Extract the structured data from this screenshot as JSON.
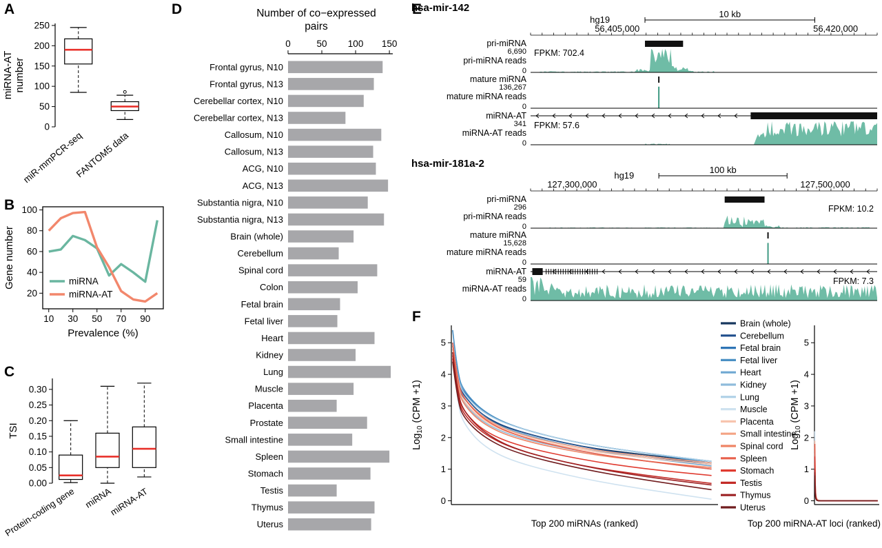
{
  "panels": {
    "A": {
      "label": "A"
    },
    "B": {
      "label": "B"
    },
    "C": {
      "label": "C"
    },
    "D": {
      "label": "D"
    },
    "E": {
      "label": "E"
    },
    "F": {
      "label": "F"
    }
  },
  "colors": {
    "teal": "#6fbca6",
    "teal_dark": "#3f9a82",
    "salmon": "#f2876c",
    "median_red": "#e8302a",
    "bar_gray": "#a7a7aa",
    "black": "#111111"
  },
  "tissue_legend": [
    {
      "label": "Brain (whole)",
      "color": "#17375e"
    },
    {
      "label": "Cerebellum",
      "color": "#1f4e8c"
    },
    {
      "label": "Fetal brain",
      "color": "#2e75b6"
    },
    {
      "label": "Fetal liver",
      "color": "#4a90c4"
    },
    {
      "label": "Heart",
      "color": "#6fa8d2"
    },
    {
      "label": "Kidney",
      "color": "#8fbcdb"
    },
    {
      "label": "Lung",
      "color": "#aed0e6"
    },
    {
      "label": "Muscle",
      "color": "#cfe2f0"
    },
    {
      "label": "Placenta",
      "color": "#f8c4ae"
    },
    {
      "label": "Small intestine",
      "color": "#f4a384"
    },
    {
      "label": "Spinal cord",
      "color": "#ef8465"
    },
    {
      "label": "Spleen",
      "color": "#e8604c"
    },
    {
      "label": "Stomach",
      "color": "#e03b30"
    },
    {
      "label": "Testis",
      "color": "#c32b27"
    },
    {
      "label": "Thymus",
      "color": "#9c2123"
    },
    {
      "label": "Uterus",
      "color": "#701c1e"
    }
  ],
  "chart_data": [
    {
      "id": "A",
      "type": "boxplot",
      "ylabel": [
        "miRNA-AT",
        "number"
      ],
      "ylim": [
        0,
        255
      ],
      "yticks": [
        0,
        50,
        100,
        150,
        200,
        250
      ],
      "ytick_labels": [
        "0",
        "50",
        "100",
        "150",
        "200",
        "250"
      ],
      "categories": [
        "miR-mmPCR-seq",
        "FANTOM5 data"
      ],
      "boxes": [
        {
          "low": 85,
          "q1": 155,
          "median": 190,
          "q3": 217,
          "high": 245
        },
        {
          "low": 18,
          "q1": 40,
          "median": 50,
          "q3": 62,
          "high": 78,
          "outliers": [
            86
          ]
        }
      ],
      "label_rotate": -40
    },
    {
      "id": "B",
      "type": "line",
      "xlabel": "Prevalence (%)",
      "ylabel": "Gene number",
      "xlim": [
        5,
        105
      ],
      "xticks": [
        10,
        30,
        50,
        70,
        90
      ],
      "ylim": [
        5,
        103
      ],
      "yticks": [
        20,
        40,
        60,
        80,
        100
      ],
      "x": [
        10,
        20,
        30,
        40,
        50,
        60,
        70,
        80,
        90,
        100
      ],
      "series": [
        {
          "name": "miRNA",
          "color": "#6ab6a0",
          "values": [
            60,
            62,
            75,
            71,
            63,
            37,
            48,
            40,
            31,
            90
          ]
        },
        {
          "name": "miRNA-AT",
          "color": "#f2876c",
          "values": [
            80,
            92,
            97,
            98,
            64,
            45,
            22,
            14,
            12,
            20
          ]
        }
      ]
    },
    {
      "id": "C",
      "type": "boxplot",
      "ylabel": "TSI",
      "ylim": [
        0,
        0.335
      ],
      "yticks": [
        0,
        0.05,
        0.1,
        0.15,
        0.2,
        0.25,
        0.3
      ],
      "ytick_labels": [
        "0.00",
        "0.05",
        "0.10",
        "0.15",
        "0.20",
        "0.25",
        "0.30"
      ],
      "categories": [
        "Protein-coding gene",
        "miRNA",
        "miRNA-AT"
      ],
      "boxes": [
        {
          "low": 0.002,
          "q1": 0.012,
          "median": 0.025,
          "q3": 0.09,
          "high": 0.2
        },
        {
          "low": 0.0,
          "q1": 0.05,
          "median": 0.085,
          "q3": 0.16,
          "high": 0.31
        },
        {
          "low": 0.02,
          "q1": 0.05,
          "median": 0.11,
          "q3": 0.18,
          "high": 0.32
        }
      ],
      "label_rotate": -33
    },
    {
      "id": "D",
      "type": "bar",
      "orientation": "horizontal",
      "title_lines": [
        "Number of co−expressed",
        "pairs"
      ],
      "xlim": [
        0,
        155
      ],
      "xticks": [
        0,
        50,
        100,
        150
      ],
      "categories": [
        "Frontal gyrus, N10",
        "Frontal gyrus, N13",
        "Cerebellar cortex, N10",
        "Cerebellar cortex, N13",
        "Callosum, N10",
        "Callosum, N13",
        "ACG, N10",
        "ACG, N13",
        "Substantia nigra, N10",
        "Substantia nigra, N13",
        "Brain (whole)",
        "Cerebellum",
        "Spinal cord",
        "Colon",
        "Fetal brain",
        "Fetal liver",
        "Heart",
        "Kidney",
        "Lung",
        "Muscle",
        "Placenta",
        "Prostate",
        "Small intestine",
        "Spleen",
        "Stomach",
        "Testis",
        "Thymus",
        "Uterus"
      ],
      "values": [
        140,
        127,
        112,
        85,
        138,
        126,
        130,
        148,
        118,
        142,
        97,
        75,
        132,
        103,
        77,
        73,
        128,
        100,
        152,
        97,
        72,
        117,
        95,
        150,
        122,
        72,
        128,
        123
      ]
    },
    {
      "id": "E",
      "type": "genome",
      "loci": [
        {
          "name": "hsa-mir-142",
          "genome": "hg19",
          "genome_pos": 0.2,
          "scale_label": "10 kb",
          "scale_span": [
            0.33,
            0.82
          ],
          "coords": [
            {
              "text": "56,405,000",
              "pos": 0.25
            },
            {
              "text": "56,420,000",
              "pos": 0.88
            }
          ],
          "tracks": [
            {
              "kind": "feature",
              "label": "pri-miRNA",
              "box": [
                0.33,
                0.44
              ]
            },
            {
              "kind": "reads",
              "label": "pri-miRNA reads",
              "ymax": "6,690",
              "ymin": "0",
              "fpkm": "FPKM: 702.4",
              "fpkm_side": "left",
              "seed": 7,
              "profile": [
                [
                  0.02,
                  0.3,
                  0.015,
                  0.02
                ],
                [
                  0.3,
                  0.345,
                  0.06,
                  0.07
                ],
                [
                  0.345,
                  0.41,
                  0.5,
                  0.5
                ],
                [
                  0.41,
                  0.46,
                  0.1,
                  0.12
                ],
                [
                  0.46,
                  0.53,
                  0.02,
                  0.03
                ]
              ]
            },
            {
              "kind": "tick",
              "label": "mature miRNA",
              "pos": 0.37
            },
            {
              "kind": "reads",
              "label": "mature miRNA reads",
              "ymax": "136,267",
              "ymin": "0",
              "seed": 8,
              "profile": [],
              "spikes": [
                [
                  0.37,
                  0.92
                ]
              ]
            },
            {
              "kind": "gene",
              "label": "miRNA-AT",
              "box": [
                0.635,
                1.0
              ],
              "dir": "left"
            },
            {
              "kind": "reads",
              "label": "miRNA-AT reads",
              "ymax": "341",
              "ymin": "0",
              "fpkm": "FPKM: 57.6",
              "fpkm_side": "left",
              "seed": 9,
              "profile": [
                [
                  0.33,
                  0.4,
                  0.02,
                  0.02
                ],
                [
                  0.645,
                  0.68,
                  0.25,
                  0.2
                ],
                [
                  0.68,
                  1.0,
                  0.55,
                  0.35
                ]
              ]
            }
          ]
        },
        {
          "name": "hsa-mir-181a-2",
          "genome": "hg19",
          "genome_pos": 0.27,
          "scale_label": "100 kb",
          "scale_span": [
            0.37,
            0.74
          ],
          "coords": [
            {
              "text": "127,300,000",
              "pos": 0.12
            },
            {
              "text": "127,500,000",
              "pos": 0.85
            }
          ],
          "tracks": [
            {
              "kind": "feature",
              "label": "pri-miRNA",
              "box": [
                0.56,
                0.675
              ]
            },
            {
              "kind": "reads",
              "label": "pri-miRNA reads",
              "ymax": "296",
              "ymin": "0",
              "fpkm": "FPKM: 10.2",
              "fpkm_side": "right",
              "seed": 10,
              "profile": [
                [
                  0.05,
                  0.55,
                  0.01,
                  0.015
                ],
                [
                  0.56,
                  0.675,
                  0.18,
                  0.25
                ],
                [
                  0.675,
                  0.72,
                  0.05,
                  0.05
                ],
                [
                  0.72,
                  0.99,
                  0.012,
                  0.02
                ]
              ]
            },
            {
              "kind": "tick",
              "label": "mature miRNA",
              "pos": 0.685
            },
            {
              "kind": "reads",
              "label": "mature miRNA reads",
              "ymax": "15,628",
              "ymin": "0",
              "seed": 11,
              "profile": [],
              "spikes": [
                [
                  0.685,
                  0.9
                ]
              ]
            },
            {
              "kind": "gene",
              "label": "miRNA-AT",
              "box": [
                0.005,
                0.035
              ],
              "dir": "left",
              "hash": true
            },
            {
              "kind": "reads",
              "label": "miRNA-AT reads",
              "ymax": "59",
              "ymin": "0",
              "fpkm": "FPKM: 7.3",
              "fpkm_side": "right",
              "seed": 12,
              "profile": [
                [
                  0.0,
                  0.06,
                  0.5,
                  0.5
                ],
                [
                  0.06,
                  1.0,
                  0.26,
                  0.3
                ]
              ]
            }
          ]
        }
      ]
    },
    {
      "id": "F-left",
      "type": "line",
      "xlabel": "Top 200 miRNAs (ranked)",
      "ylabel": "Log10 (CPM +1)",
      "xmax": 205,
      "ylim": [
        -0.12,
        5.55
      ],
      "yticks": [
        0,
        1,
        2,
        3,
        4,
        5
      ],
      "x": [
        1,
        5,
        10,
        25,
        50,
        100,
        150,
        200
      ],
      "series": [
        {
          "name": "Brain (whole)",
          "values": [
            4.8,
            3.6,
            3.2,
            2.6,
            2.2,
            1.7,
            1.45,
            1.2
          ]
        },
        {
          "name": "Cerebellum",
          "values": [
            4.9,
            3.7,
            3.3,
            2.65,
            2.2,
            1.7,
            1.4,
            1.15
          ]
        },
        {
          "name": "Fetal brain",
          "values": [
            5.0,
            3.8,
            3.4,
            2.8,
            2.3,
            1.8,
            1.5,
            1.25
          ]
        },
        {
          "name": "Fetal liver",
          "values": [
            5.4,
            3.95,
            3.45,
            2.8,
            2.3,
            1.8,
            1.5,
            1.2
          ]
        },
        {
          "name": "Heart",
          "values": [
            4.9,
            3.65,
            3.2,
            2.6,
            2.15,
            1.65,
            1.35,
            1.1
          ]
        },
        {
          "name": "Kidney",
          "values": [
            4.7,
            3.5,
            3.05,
            2.45,
            2.0,
            1.55,
            1.25,
            1.0
          ]
        },
        {
          "name": "Lung",
          "values": [
            4.95,
            3.8,
            3.35,
            2.75,
            2.3,
            1.8,
            1.5,
            1.25
          ]
        },
        {
          "name": "Muscle",
          "values": [
            4.6,
            3.0,
            2.4,
            1.7,
            1.2,
            0.7,
            0.35,
            0.05
          ]
        },
        {
          "name": "Placenta",
          "values": [
            4.8,
            3.55,
            3.1,
            2.5,
            2.05,
            1.6,
            1.35,
            1.15
          ]
        },
        {
          "name": "Small intestine",
          "values": [
            4.9,
            3.7,
            3.2,
            2.6,
            2.1,
            1.65,
            1.4,
            1.2
          ]
        },
        {
          "name": "Spinal cord",
          "values": [
            4.7,
            3.5,
            3.0,
            2.4,
            1.95,
            1.5,
            1.25,
            1.05
          ]
        },
        {
          "name": "Spleen",
          "values": [
            5.0,
            3.7,
            3.2,
            2.55,
            2.05,
            1.55,
            1.25,
            1.0
          ]
        },
        {
          "name": "Stomach",
          "values": [
            4.6,
            3.3,
            2.8,
            2.2,
            1.75,
            1.3,
            1.0,
            0.8
          ]
        },
        {
          "name": "Testis",
          "values": [
            4.5,
            3.2,
            2.7,
            2.1,
            1.6,
            1.1,
            0.8,
            0.55
          ]
        },
        {
          "name": "Thymus",
          "values": [
            4.7,
            3.35,
            2.8,
            2.15,
            1.6,
            1.1,
            0.75,
            0.5
          ]
        },
        {
          "name": "Uterus",
          "values": [
            4.4,
            3.1,
            2.6,
            2.0,
            1.5,
            1.0,
            0.65,
            0.35
          ]
        }
      ]
    },
    {
      "id": "F-right",
      "type": "line",
      "xlabel": "Top 200 miRNA-AT loci (ranked)",
      "ylabel": "Log10 (CPM +1)",
      "xmax": 205,
      "ylim": [
        -0.12,
        5.55
      ],
      "yticks": [
        0,
        1,
        2,
        3,
        4,
        5
      ],
      "x": [
        1,
        2,
        3,
        5,
        10,
        20,
        50,
        200
      ],
      "series": [
        {
          "name": "Brain (whole)",
          "values": [
            1.0,
            0.5,
            0.2,
            0.05,
            0,
            0,
            0,
            0
          ]
        },
        {
          "name": "Cerebellum",
          "values": [
            1.2,
            0.6,
            0.25,
            0.06,
            0,
            0,
            0,
            0
          ]
        },
        {
          "name": "Fetal brain",
          "values": [
            1.4,
            0.7,
            0.3,
            0.08,
            0,
            0,
            0,
            0
          ]
        },
        {
          "name": "Fetal liver",
          "values": [
            1.6,
            0.8,
            0.35,
            0.1,
            0.02,
            0,
            0,
            0
          ]
        },
        {
          "name": "Heart",
          "values": [
            1.1,
            0.5,
            0.2,
            0.05,
            0,
            0,
            0,
            0
          ]
        },
        {
          "name": "Kidney",
          "values": [
            1.3,
            0.6,
            0.25,
            0.06,
            0,
            0,
            0,
            0
          ]
        },
        {
          "name": "Lung",
          "values": [
            1.5,
            0.7,
            0.3,
            0.08,
            0,
            0,
            0,
            0
          ]
        },
        {
          "name": "Muscle",
          "values": [
            2.2,
            1.0,
            0.4,
            0.1,
            0.02,
            0,
            0,
            0
          ]
        },
        {
          "name": "Placenta",
          "values": [
            1.9,
            0.9,
            0.35,
            0.1,
            0.02,
            0,
            0,
            0
          ]
        },
        {
          "name": "Small intestine",
          "values": [
            1.7,
            0.8,
            0.3,
            0.08,
            0,
            0,
            0,
            0
          ]
        },
        {
          "name": "Spinal cord",
          "values": [
            1.2,
            0.55,
            0.22,
            0.05,
            0,
            0,
            0,
            0
          ]
        },
        {
          "name": "Spleen",
          "values": [
            1.8,
            0.85,
            0.32,
            0.09,
            0,
            0,
            0,
            0
          ]
        },
        {
          "name": "Stomach",
          "values": [
            1.4,
            0.65,
            0.25,
            0.06,
            0,
            0,
            0,
            0
          ]
        },
        {
          "name": "Testis",
          "values": [
            1.0,
            0.45,
            0.18,
            0.04,
            0,
            0,
            0,
            0
          ]
        },
        {
          "name": "Thymus",
          "values": [
            0.9,
            0.4,
            0.15,
            0.04,
            0,
            0,
            0,
            0
          ]
        },
        {
          "name": "Uterus",
          "values": [
            0.8,
            0.35,
            0.12,
            0.03,
            0,
            0,
            0,
            0
          ]
        }
      ]
    }
  ]
}
